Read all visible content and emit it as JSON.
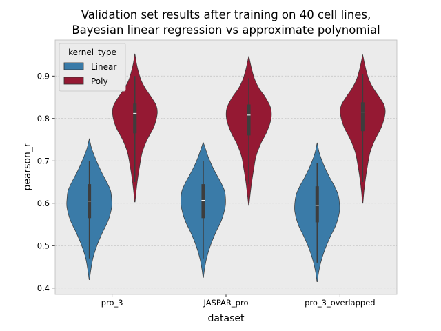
{
  "chart_data": {
    "type": "violin",
    "title_line1": "Validation set results after training on 40 cell lines,",
    "title_line2": "Bayesian linear regression vs approximate polynomial",
    "xlabel": "dataset",
    "ylabel": "pearson_r",
    "categories": [
      "pro_3",
      "JASPAR_pro",
      "pro_3_overlapped"
    ],
    "ylim": [
      0.385,
      0.985
    ],
    "yticks": [
      0.4,
      0.5,
      0.6,
      0.7,
      0.8,
      0.9
    ],
    "ytick_labels": [
      "0.4",
      "0.5",
      "0.6",
      "0.7",
      "0.8",
      "0.9"
    ],
    "grid": true,
    "legend": {
      "title": "kernel_type",
      "placement": "top-left",
      "entries": [
        "Linear",
        "Poly"
      ]
    },
    "colors": {
      "Linear": "#3a7ba8",
      "Poly": "#951933",
      "background": "#ebebeb",
      "grid": "#bfbfbf"
    },
    "series": [
      {
        "name": "Linear",
        "violins": [
          {
            "min": 0.42,
            "max": 0.75,
            "whisker_low": 0.47,
            "whisker_high": 0.7,
            "q1": 0.565,
            "median": 0.605,
            "q3": 0.645,
            "peak": 0.61,
            "density": [
              [
                0.42,
                0.01
              ],
              [
                0.44,
                0.06
              ],
              [
                0.47,
                0.16
              ],
              [
                0.5,
                0.34
              ],
              [
                0.53,
                0.58
              ],
              [
                0.56,
                0.85
              ],
              [
                0.59,
                1.0
              ],
              [
                0.61,
                1.0
              ],
              [
                0.63,
                0.95
              ],
              [
                0.65,
                0.78
              ],
              [
                0.67,
                0.58
              ],
              [
                0.69,
                0.4
              ],
              [
                0.71,
                0.24
              ],
              [
                0.73,
                0.1
              ],
              [
                0.75,
                0.01
              ]
            ]
          },
          {
            "min": 0.425,
            "max": 0.742,
            "whisker_low": 0.47,
            "whisker_high": 0.7,
            "q1": 0.565,
            "median": 0.607,
            "q3": 0.645,
            "peak": 0.61,
            "density": [
              [
                0.425,
                0.01
              ],
              [
                0.445,
                0.06
              ],
              [
                0.47,
                0.15
              ],
              [
                0.5,
                0.32
              ],
              [
                0.53,
                0.55
              ],
              [
                0.56,
                0.82
              ],
              [
                0.59,
                0.98
              ],
              [
                0.61,
                1.0
              ],
              [
                0.63,
                0.95
              ],
              [
                0.65,
                0.78
              ],
              [
                0.67,
                0.57
              ],
              [
                0.69,
                0.38
              ],
              [
                0.71,
                0.22
              ],
              [
                0.73,
                0.09
              ],
              [
                0.742,
                0.01
              ]
            ]
          },
          {
            "min": 0.415,
            "max": 0.74,
            "whisker_low": 0.46,
            "whisker_high": 0.695,
            "q1": 0.555,
            "median": 0.595,
            "q3": 0.64,
            "peak": 0.6,
            "density": [
              [
                0.415,
                0.01
              ],
              [
                0.435,
                0.06
              ],
              [
                0.46,
                0.16
              ],
              [
                0.49,
                0.34
              ],
              [
                0.52,
                0.58
              ],
              [
                0.55,
                0.85
              ],
              [
                0.58,
                1.0
              ],
              [
                0.6,
                1.0
              ],
              [
                0.62,
                0.94
              ],
              [
                0.64,
                0.78
              ],
              [
                0.66,
                0.57
              ],
              [
                0.68,
                0.38
              ],
              [
                0.7,
                0.22
              ],
              [
                0.72,
                0.09
              ],
              [
                0.74,
                0.01
              ]
            ]
          }
        ]
      },
      {
        "name": "Poly",
        "violins": [
          {
            "min": 0.603,
            "max": 0.95,
            "whisker_low": 0.65,
            "whisker_high": 0.9,
            "q1": 0.765,
            "median": 0.812,
            "q3": 0.835,
            "peak": 0.82,
            "density": [
              [
                0.603,
                0.01
              ],
              [
                0.63,
                0.06
              ],
              [
                0.66,
                0.13
              ],
              [
                0.69,
                0.22
              ],
              [
                0.72,
                0.33
              ],
              [
                0.75,
                0.55
              ],
              [
                0.78,
                0.85
              ],
              [
                0.81,
                1.0
              ],
              [
                0.83,
                0.96
              ],
              [
                0.85,
                0.74
              ],
              [
                0.87,
                0.48
              ],
              [
                0.89,
                0.28
              ],
              [
                0.91,
                0.16
              ],
              [
                0.93,
                0.07
              ],
              [
                0.95,
                0.01
              ]
            ]
          },
          {
            "min": 0.595,
            "max": 0.945,
            "whisker_low": 0.645,
            "whisker_high": 0.895,
            "q1": 0.76,
            "median": 0.808,
            "q3": 0.833,
            "peak": 0.815,
            "density": [
              [
                0.595,
                0.01
              ],
              [
                0.62,
                0.06
              ],
              [
                0.65,
                0.13
              ],
              [
                0.68,
                0.22
              ],
              [
                0.71,
                0.32
              ],
              [
                0.74,
                0.53
              ],
              [
                0.77,
                0.82
              ],
              [
                0.8,
                1.0
              ],
              [
                0.825,
                0.98
              ],
              [
                0.85,
                0.74
              ],
              [
                0.87,
                0.47
              ],
              [
                0.89,
                0.28
              ],
              [
                0.91,
                0.16
              ],
              [
                0.93,
                0.07
              ],
              [
                0.945,
                0.01
              ]
            ]
          },
          {
            "min": 0.6,
            "max": 0.948,
            "whisker_low": 0.65,
            "whisker_high": 0.905,
            "q1": 0.77,
            "median": 0.815,
            "q3": 0.838,
            "peak": 0.82,
            "density": [
              [
                0.6,
                0.01
              ],
              [
                0.63,
                0.06
              ],
              [
                0.66,
                0.13
              ],
              [
                0.69,
                0.22
              ],
              [
                0.72,
                0.33
              ],
              [
                0.75,
                0.55
              ],
              [
                0.78,
                0.84
              ],
              [
                0.81,
                1.0
              ],
              [
                0.83,
                0.97
              ],
              [
                0.85,
                0.75
              ],
              [
                0.87,
                0.49
              ],
              [
                0.89,
                0.29
              ],
              [
                0.91,
                0.17
              ],
              [
                0.93,
                0.08
              ],
              [
                0.948,
                0.01
              ]
            ]
          }
        ]
      }
    ]
  }
}
